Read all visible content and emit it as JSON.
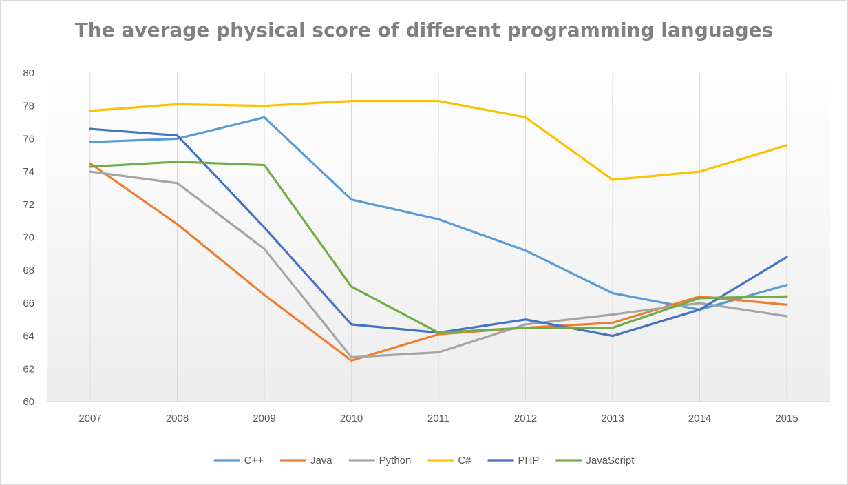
{
  "chart_data": {
    "type": "line",
    "title": "The average physical score of different programming languages",
    "xlabel": "",
    "ylabel": "",
    "categories": [
      "2007",
      "2008",
      "2009",
      "2010",
      "2011",
      "2012",
      "2013",
      "2014",
      "2015"
    ],
    "ylim": [
      60,
      80
    ],
    "y_ticks": [
      "60",
      "62",
      "64",
      "66",
      "68",
      "70",
      "72",
      "74",
      "76",
      "78",
      "80"
    ],
    "grid": "vertical",
    "legend_position": "bottom",
    "series": [
      {
        "name": "C++",
        "color": "#5B9BD5",
        "values": [
          75.8,
          76.0,
          77.3,
          72.3,
          71.1,
          69.2,
          66.6,
          65.6,
          67.1
        ]
      },
      {
        "name": "Java",
        "color": "#ED7D31",
        "values": [
          74.5,
          70.8,
          66.5,
          62.5,
          64.1,
          64.5,
          64.8,
          66.4,
          65.9
        ]
      },
      {
        "name": "Python",
        "color": "#A5A5A5",
        "values": [
          74.0,
          73.3,
          69.3,
          62.7,
          63.0,
          64.7,
          65.3,
          66.0,
          65.2
        ]
      },
      {
        "name": "C#",
        "color": "#FFC000",
        "values": [
          77.7,
          78.1,
          78.0,
          78.3,
          78.3,
          77.3,
          73.5,
          74.0,
          75.6
        ]
      },
      {
        "name": "PHP",
        "color": "#4472C4",
        "values": [
          76.6,
          76.2,
          70.6,
          64.7,
          64.2,
          65.0,
          64.0,
          65.6,
          68.8
        ]
      },
      {
        "name": "JavaScript",
        "color": "#70AD47",
        "values": [
          74.3,
          74.6,
          74.4,
          67.0,
          64.2,
          64.5,
          64.5,
          66.3,
          66.4
        ]
      }
    ]
  }
}
